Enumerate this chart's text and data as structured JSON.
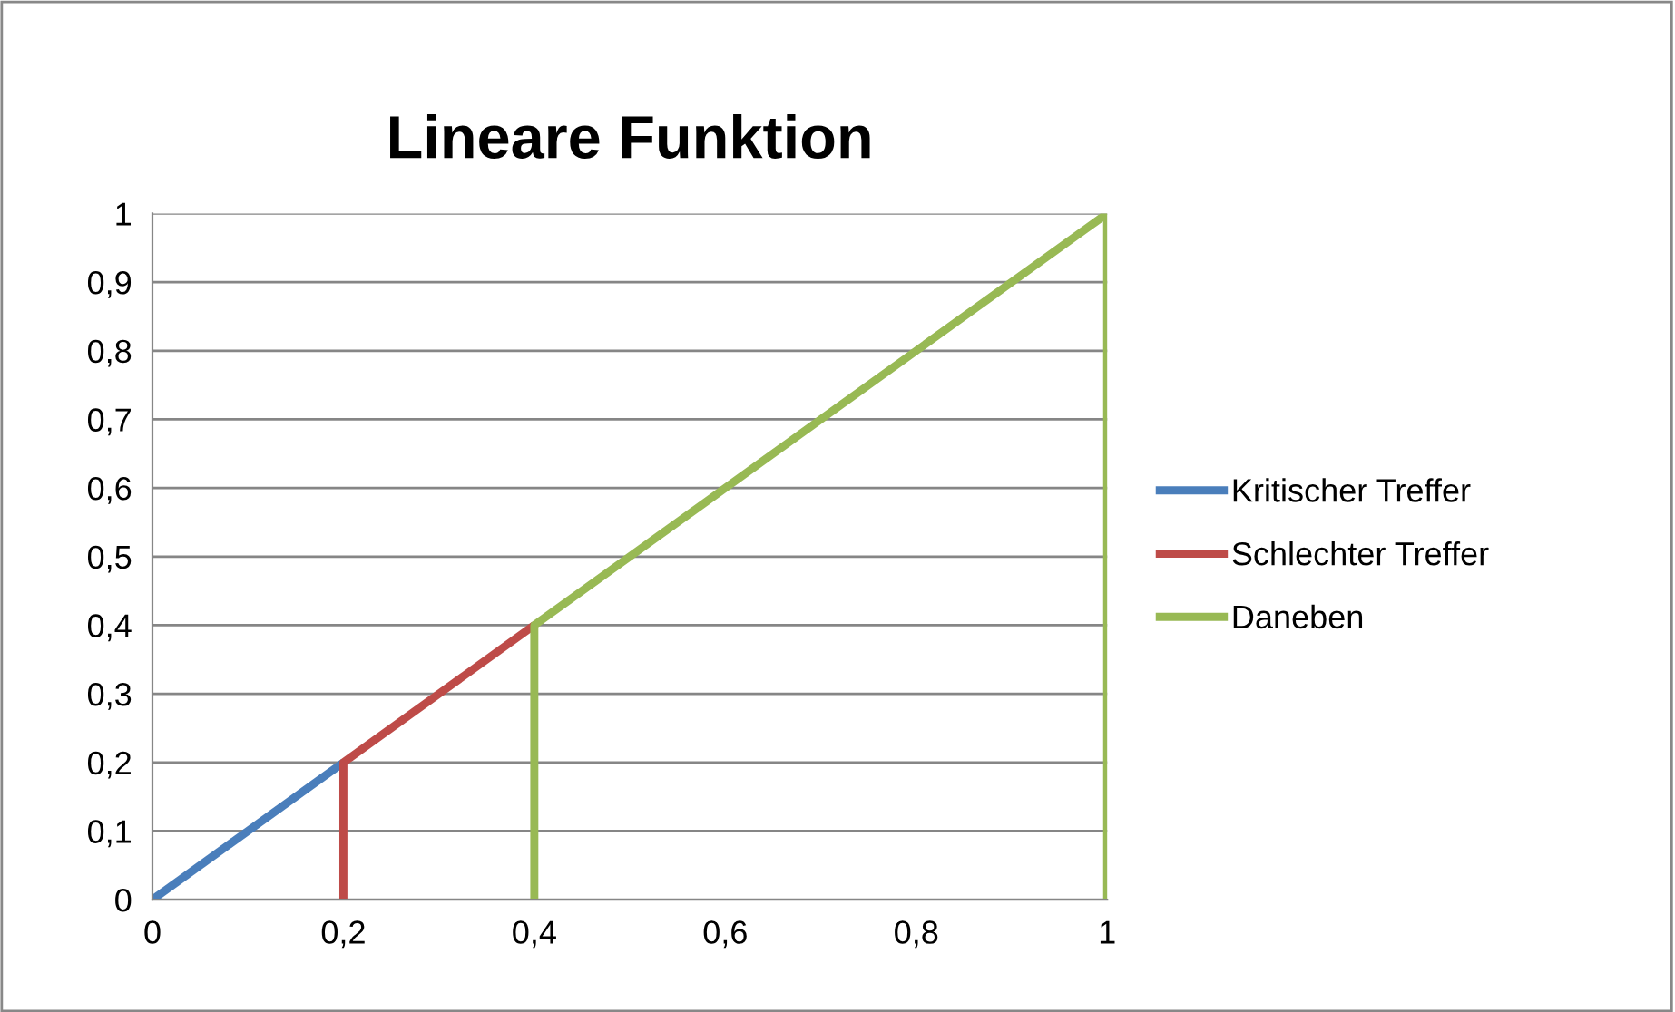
{
  "chart_data": {
    "type": "line",
    "title": "Lineare Funktion",
    "series": [
      {
        "name": "Kritischer Treffer",
        "color": "#4a7ebb",
        "x": [
          0,
          0.2
        ],
        "values": [
          0,
          0.2
        ]
      },
      {
        "name": "Schlechter Treffer",
        "color": "#be4b48",
        "x": [
          0.2,
          0.2,
          0.4
        ],
        "values": [
          0,
          0.2,
          0.4
        ]
      },
      {
        "name": "Daneben",
        "color": "#98b954",
        "x": [
          0.4,
          0.4,
          1,
          1
        ],
        "values": [
          0,
          0.4,
          1,
          0
        ]
      }
    ],
    "xlim": [
      0,
      1
    ],
    "xticks": [
      0,
      {
        "value": 0.2,
        "label": "0,2"
      },
      {
        "value": 0.4,
        "label": "0,4"
      },
      {
        "value": 0.6,
        "label": "0,6"
      },
      {
        "value": 0.8,
        "label": "0,8"
      },
      1
    ],
    "ylim": [
      0,
      1
    ],
    "yticks": [
      0,
      {
        "value": 0.1,
        "label": "0,1"
      },
      {
        "value": 0.2,
        "label": "0,2"
      },
      {
        "value": 0.3,
        "label": "0,3"
      },
      {
        "value": 0.4,
        "label": "0,4"
      },
      {
        "value": 0.5,
        "label": "0,5"
      },
      {
        "value": 0.6,
        "label": "0,6"
      },
      {
        "value": 0.7,
        "label": "0,7"
      },
      {
        "value": 0.8,
        "label": "0,8"
      },
      {
        "value": 0.9,
        "label": "0,9"
      },
      1
    ],
    "grid": "y",
    "legend": "right",
    "marker": "none",
    "line_style": "solid"
  }
}
